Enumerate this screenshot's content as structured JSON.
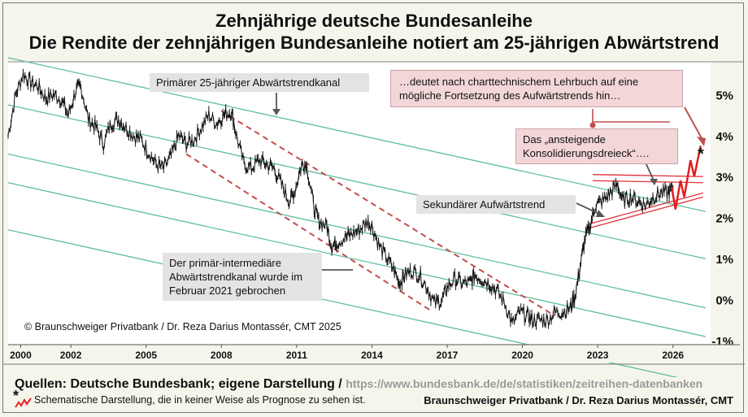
{
  "title": {
    "line1": "Zehnjährige deutsche Bundesanleihe",
    "line2": "Die Rendite der zehnjährigen Bundesanleihe notiert am 25-jährigen Abwärtstrend"
  },
  "annotations": {
    "primary_channel": "Primärer 25-jähriger Abwärtstrendkanal",
    "pink_top": "…deutet nach charttechnischem Lehrbuch auf eine mögliche Fortsetzung des Aufwärtstrends hin…",
    "pink_triangle": "Das „ansteigende Konsolidierungsdreieck“….",
    "secondary_trend": "Sekundärer Aufwärtstrend",
    "broken_channel": "Der primär-intermediäre Abwärtstrendkanal wurde im Februar 2021 gebrochen",
    "copyright": "© Braunschweiger Privatbank / Dr. Reza Darius Montassér, CMT  2025",
    "star": "*"
  },
  "footer": {
    "sources_label": "Quellen: Deutsche Bundesbank; eigene Darstellung /",
    "url": "https://www.bundesbank.de/de/statistiken/zeitreihen-datenbanken",
    "star": "*",
    "note": "Schematische Darstellung, die in keiner Weise als Prognose zu sehen ist.",
    "brand": "Braunschweiger Privatbank / Dr. Reza Darius Montassér, CMT"
  },
  "colors": {
    "price": "#111111",
    "trend_channel": "#5fbf9f",
    "dashed_channel": "#c0504d",
    "triangle": "#e0303a",
    "projection": "#e02020"
  },
  "chart_data": {
    "type": "line",
    "x_ticks": [
      "2000",
      "2002",
      "2005",
      "2008",
      "2011",
      "2014",
      "2017",
      "2020",
      "2023",
      "2026"
    ],
    "x_tick_values": [
      2000,
      2002,
      2005,
      2008,
      2011,
      2014,
      2017,
      2020,
      2023,
      2026
    ],
    "y_ticks": [
      "5%",
      "4%",
      "3%",
      "2%",
      "1%",
      "0%",
      "-1%"
    ],
    "y_tick_values": [
      5,
      4,
      3,
      2,
      1,
      0,
      -1
    ],
    "xlim": [
      1999.5,
      2027.5
    ],
    "ylim": [
      -1.1,
      5.8
    ],
    "series": [
      {
        "x": [
          1999.5,
          1999.8,
          2000.1,
          2000.4,
          2000.7,
          2001.0,
          2001.3,
          2001.6,
          2001.9,
          2002.2,
          2002.4,
          2002.7,
          2003.0,
          2003.3,
          2003.6,
          2003.9,
          2004.2,
          2004.5,
          2004.8,
          2005.1,
          2005.4,
          2005.7,
          2006.0,
          2006.3,
          2006.6,
          2006.9,
          2007.2,
          2007.5,
          2007.8,
          2008.1,
          2008.4,
          2008.6,
          2008.9,
          2009.2,
          2009.5,
          2009.8,
          2010.1,
          2010.4,
          2010.7,
          2010.9,
          2011.2,
          2011.4,
          2011.7,
          2011.9,
          2012.2,
          2012.4,
          2012.6,
          2012.9,
          2013.2,
          2013.5,
          2013.8,
          2014.0,
          2014.3,
          2014.6,
          2014.9,
          2015.1,
          2015.3,
          2015.6,
          2015.9,
          2016.2,
          2016.5,
          2016.8,
          2017.0,
          2017.3,
          2017.6,
          2017.9,
          2018.1,
          2018.4,
          2018.7,
          2019.0,
          2019.3,
          2019.6,
          2019.9,
          2020.2,
          2020.4,
          2020.7,
          2021.0,
          2021.3,
          2021.6,
          2021.9,
          2022.1,
          2022.3,
          2022.5,
          2022.7,
          2022.9,
          2023.2,
          2023.5,
          2023.8,
          2024.0,
          2024.3,
          2024.6,
          2024.9,
          2025.2,
          2025.5,
          2025.8,
          2026.0
        ],
        "values": [
          4.0,
          5.0,
          5.5,
          5.3,
          5.2,
          4.9,
          5.0,
          4.9,
          4.5,
          5.1,
          5.2,
          4.4,
          4.2,
          3.8,
          4.3,
          4.4,
          4.2,
          4.0,
          3.9,
          3.6,
          3.3,
          3.2,
          3.5,
          4.0,
          3.8,
          3.9,
          4.2,
          4.5,
          4.3,
          4.5,
          4.6,
          4.0,
          3.3,
          3.2,
          3.4,
          3.3,
          3.2,
          2.8,
          2.4,
          2.6,
          3.3,
          3.3,
          2.2,
          1.9,
          1.8,
          1.3,
          1.4,
          1.5,
          1.6,
          1.7,
          1.9,
          1.8,
          1.3,
          1.0,
          0.7,
          0.4,
          0.6,
          0.7,
          0.6,
          0.3,
          -0.1,
          0.0,
          0.3,
          0.5,
          0.4,
          0.4,
          0.6,
          0.5,
          0.4,
          0.2,
          -0.1,
          -0.6,
          -0.3,
          -0.4,
          -0.5,
          -0.5,
          -0.5,
          -0.3,
          -0.3,
          -0.2,
          0.1,
          0.8,
          1.5,
          1.8,
          2.3,
          2.4,
          2.6,
          2.8,
          2.4,
          2.5,
          2.4,
          2.3,
          2.5,
          2.6,
          2.6,
          2.7
        ]
      }
    ]
  }
}
